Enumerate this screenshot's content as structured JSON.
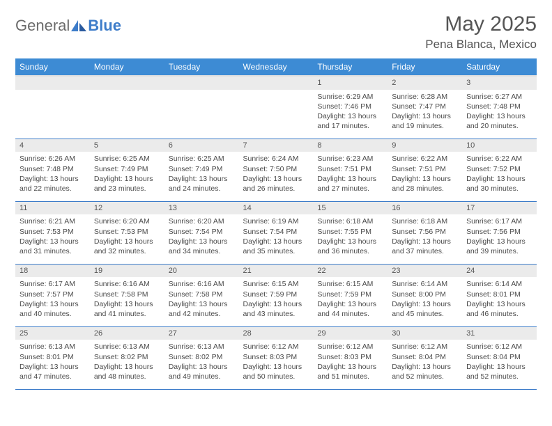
{
  "brand": {
    "name1": "General",
    "name2": "Blue"
  },
  "title": "May 2025",
  "location": "Pena Blanca, Mexico",
  "colors": {
    "header_bg": "#3d8bd4",
    "border": "#3d7cc9",
    "daynum_bg": "#ebebeb",
    "text": "#4a4a4a",
    "title_text": "#555555"
  },
  "weekdays": [
    "Sunday",
    "Monday",
    "Tuesday",
    "Wednesday",
    "Thursday",
    "Friday",
    "Saturday"
  ],
  "weeks": [
    [
      null,
      null,
      null,
      null,
      {
        "n": "1",
        "sr": "6:29 AM",
        "ss": "7:46 PM",
        "dl": "13 hours and 17 minutes."
      },
      {
        "n": "2",
        "sr": "6:28 AM",
        "ss": "7:47 PM",
        "dl": "13 hours and 19 minutes."
      },
      {
        "n": "3",
        "sr": "6:27 AM",
        "ss": "7:48 PM",
        "dl": "13 hours and 20 minutes."
      }
    ],
    [
      {
        "n": "4",
        "sr": "6:26 AM",
        "ss": "7:48 PM",
        "dl": "13 hours and 22 minutes."
      },
      {
        "n": "5",
        "sr": "6:25 AM",
        "ss": "7:49 PM",
        "dl": "13 hours and 23 minutes."
      },
      {
        "n": "6",
        "sr": "6:25 AM",
        "ss": "7:49 PM",
        "dl": "13 hours and 24 minutes."
      },
      {
        "n": "7",
        "sr": "6:24 AM",
        "ss": "7:50 PM",
        "dl": "13 hours and 26 minutes."
      },
      {
        "n": "8",
        "sr": "6:23 AM",
        "ss": "7:51 PM",
        "dl": "13 hours and 27 minutes."
      },
      {
        "n": "9",
        "sr": "6:22 AM",
        "ss": "7:51 PM",
        "dl": "13 hours and 28 minutes."
      },
      {
        "n": "10",
        "sr": "6:22 AM",
        "ss": "7:52 PM",
        "dl": "13 hours and 30 minutes."
      }
    ],
    [
      {
        "n": "11",
        "sr": "6:21 AM",
        "ss": "7:53 PM",
        "dl": "13 hours and 31 minutes."
      },
      {
        "n": "12",
        "sr": "6:20 AM",
        "ss": "7:53 PM",
        "dl": "13 hours and 32 minutes."
      },
      {
        "n": "13",
        "sr": "6:20 AM",
        "ss": "7:54 PM",
        "dl": "13 hours and 34 minutes."
      },
      {
        "n": "14",
        "sr": "6:19 AM",
        "ss": "7:54 PM",
        "dl": "13 hours and 35 minutes."
      },
      {
        "n": "15",
        "sr": "6:18 AM",
        "ss": "7:55 PM",
        "dl": "13 hours and 36 minutes."
      },
      {
        "n": "16",
        "sr": "6:18 AM",
        "ss": "7:56 PM",
        "dl": "13 hours and 37 minutes."
      },
      {
        "n": "17",
        "sr": "6:17 AM",
        "ss": "7:56 PM",
        "dl": "13 hours and 39 minutes."
      }
    ],
    [
      {
        "n": "18",
        "sr": "6:17 AM",
        "ss": "7:57 PM",
        "dl": "13 hours and 40 minutes."
      },
      {
        "n": "19",
        "sr": "6:16 AM",
        "ss": "7:58 PM",
        "dl": "13 hours and 41 minutes."
      },
      {
        "n": "20",
        "sr": "6:16 AM",
        "ss": "7:58 PM",
        "dl": "13 hours and 42 minutes."
      },
      {
        "n": "21",
        "sr": "6:15 AM",
        "ss": "7:59 PM",
        "dl": "13 hours and 43 minutes."
      },
      {
        "n": "22",
        "sr": "6:15 AM",
        "ss": "7:59 PM",
        "dl": "13 hours and 44 minutes."
      },
      {
        "n": "23",
        "sr": "6:14 AM",
        "ss": "8:00 PM",
        "dl": "13 hours and 45 minutes."
      },
      {
        "n": "24",
        "sr": "6:14 AM",
        "ss": "8:01 PM",
        "dl": "13 hours and 46 minutes."
      }
    ],
    [
      {
        "n": "25",
        "sr": "6:13 AM",
        "ss": "8:01 PM",
        "dl": "13 hours and 47 minutes."
      },
      {
        "n": "26",
        "sr": "6:13 AM",
        "ss": "8:02 PM",
        "dl": "13 hours and 48 minutes."
      },
      {
        "n": "27",
        "sr": "6:13 AM",
        "ss": "8:02 PM",
        "dl": "13 hours and 49 minutes."
      },
      {
        "n": "28",
        "sr": "6:12 AM",
        "ss": "8:03 PM",
        "dl": "13 hours and 50 minutes."
      },
      {
        "n": "29",
        "sr": "6:12 AM",
        "ss": "8:03 PM",
        "dl": "13 hours and 51 minutes."
      },
      {
        "n": "30",
        "sr": "6:12 AM",
        "ss": "8:04 PM",
        "dl": "13 hours and 52 minutes."
      },
      {
        "n": "31",
        "sr": "6:12 AM",
        "ss": "8:04 PM",
        "dl": "13 hours and 52 minutes."
      }
    ]
  ],
  "labels": {
    "sunrise": "Sunrise:",
    "sunset": "Sunset:",
    "daylight": "Daylight:"
  }
}
